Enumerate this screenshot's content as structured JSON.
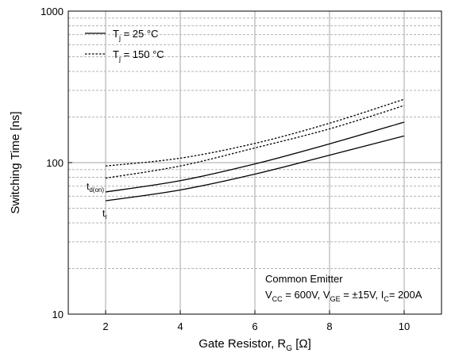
{
  "chart_data": {
    "type": "line",
    "xlabel": "Gate Resistor, R",
    "xlabel_sub": "G",
    "xlabel_unit": " [Ω]",
    "ylabel": "Switching Time [ns]",
    "xlim": [
      1,
      11
    ],
    "ylim": [
      10,
      1000
    ],
    "yscale": "log",
    "grid": true,
    "x_ticks": [
      2,
      4,
      6,
      8,
      10
    ],
    "y_ticks": [
      10,
      100,
      1000
    ],
    "legend_position": "top-left",
    "legend": [
      {
        "main": "T",
        "sub": "j",
        "rest": " = 25 °C",
        "style": "solid"
      },
      {
        "main": "T",
        "sub": "j",
        "rest": " = 150 °C",
        "style": "dotted"
      }
    ],
    "series": [
      {
        "label_main": "t",
        "label_sub": "d(on)",
        "temperature": "25 °C",
        "style": "solid",
        "x": [
          2,
          4,
          6,
          8,
          10
        ],
        "y": [
          64,
          76,
          98,
          133,
          185
        ]
      },
      {
        "label_main": "t",
        "label_sub": "r",
        "temperature": "25 °C",
        "style": "solid",
        "x": [
          2,
          4,
          6,
          8,
          10
        ],
        "y": [
          56,
          66,
          84,
          112,
          150
        ]
      },
      {
        "label_main": "t",
        "label_sub": "d(on)",
        "temperature": "150 °C",
        "style": "dotted",
        "x": [
          2,
          4,
          6,
          8,
          10
        ],
        "y": [
          95,
          107,
          134,
          182,
          262
        ]
      },
      {
        "label_main": "t",
        "label_sub": "r",
        "temperature": "150 °C",
        "style": "dotted",
        "x": [
          2,
          4,
          6,
          8,
          10
        ],
        "y": [
          79,
          95,
          125,
          167,
          238
        ]
      }
    ],
    "annotation": {
      "line1": "Common Emitter",
      "line2": [
        {
          "t": "V"
        },
        {
          "t": "CC",
          "sub": true
        },
        {
          "t": " = 600V, V"
        },
        {
          "t": "GE",
          "sub": true
        },
        {
          "t": " = ±15V, I"
        },
        {
          "t": "C",
          "sub": true
        },
        {
          "t": "= 200A"
        }
      ]
    }
  }
}
